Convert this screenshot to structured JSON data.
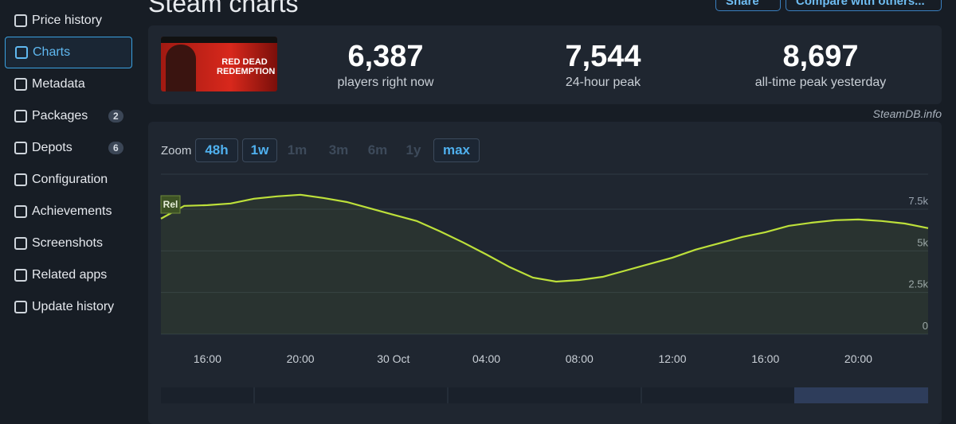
{
  "page_title": "Steam charts",
  "header_buttons": [
    "Share",
    "Compare with others..."
  ],
  "sidebar": [
    {
      "label": "Price history"
    },
    {
      "label": "Charts"
    },
    {
      "label": "Metadata"
    },
    {
      "label": "Packages",
      "badge": 2
    },
    {
      "label": "Depots",
      "badge": 6
    },
    {
      "label": "Configuration"
    },
    {
      "label": "Achievements"
    },
    {
      "label": "Screenshots"
    },
    {
      "label": "Related apps"
    },
    {
      "label": "Update history"
    }
  ],
  "game_image_text": "RED DEAD REDEMPTION",
  "stats": [
    {
      "value": "6,387",
      "label": "players right now"
    },
    {
      "value": "7,544",
      "label": "24-hour peak"
    },
    {
      "value": "8,697",
      "label": "all-time peak yesterday"
    }
  ],
  "credit": "SteamDB.info",
  "zoom_label": "Zoom",
  "zoom_buttons": [
    "48h",
    "1w",
    "1m",
    "3m",
    "6m",
    "1y",
    "max"
  ],
  "chart_data": {
    "type": "line",
    "annotation": "Rel",
    "categories": [
      null,
      null,
      "16:00",
      null,
      null,
      null,
      "20:00",
      null,
      null,
      null,
      "30 Oct",
      null,
      null,
      null,
      "04:00",
      null,
      null,
      null,
      "08:00",
      null,
      null,
      null,
      "12:00",
      null,
      null,
      null,
      "16:00",
      null,
      null,
      null,
      "20:00",
      null,
      null,
      null
    ],
    "series": [
      {
        "name": "Players",
        "color": "#bde03a",
        "values": [
          6930,
          7700,
          7740,
          7840,
          8130,
          8270,
          8370,
          8170,
          7930,
          7550,
          7170,
          6790,
          6170,
          5500,
          4780,
          4020,
          3390,
          3150,
          3250,
          3440,
          3820,
          4210,
          4590,
          5070,
          5450,
          5830,
          6120,
          6500,
          6690,
          6840,
          6880,
          6790,
          6640,
          6360
        ]
      }
    ],
    "ylim": [
      0,
      9600
    ],
    "yticks": [
      0,
      {
        "value": 2500,
        "label": "2.5k"
      },
      {
        "value": 5000,
        "label": "5k"
      },
      {
        "value": 7500,
        "label": "7.5k"
      }
    ],
    "grid": true
  }
}
